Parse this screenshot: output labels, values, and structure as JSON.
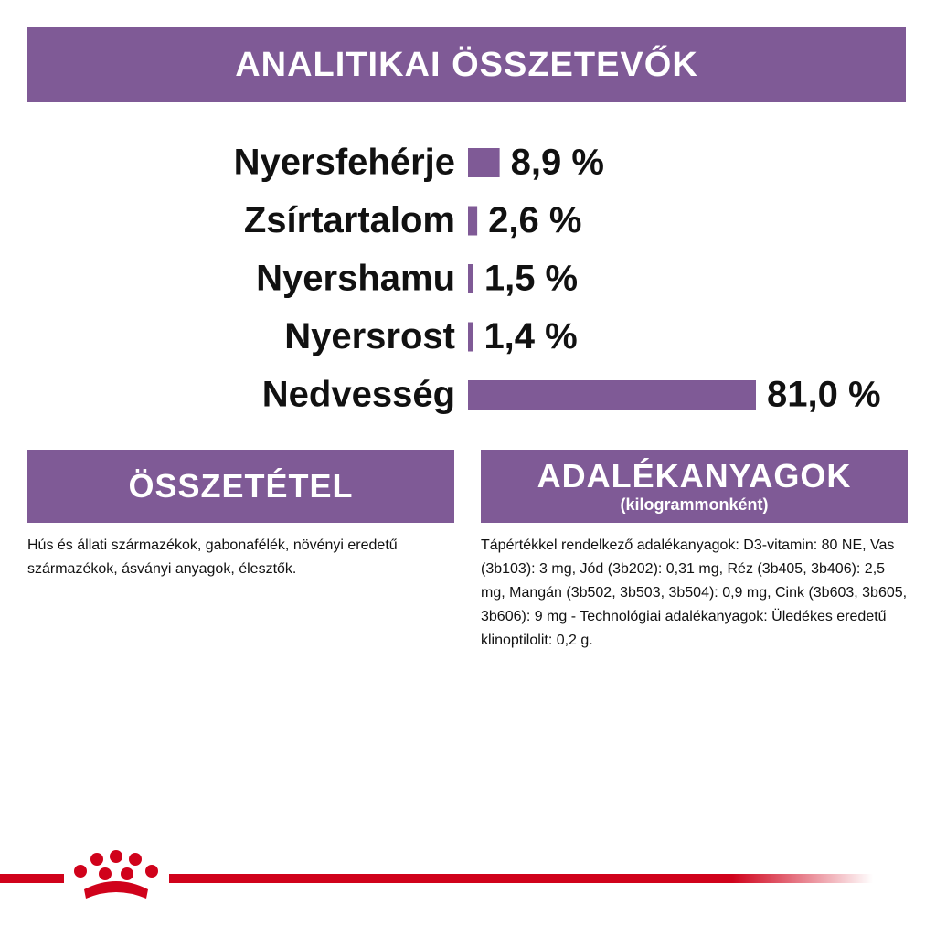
{
  "chart_data": {
    "type": "bar",
    "orientation": "horizontal",
    "title": "ANALITIKAI ÖSSZETEVŐK",
    "categories": [
      "Nyersfehérje",
      "Zsírtartalom",
      "Nyershamu",
      "Nyersrost",
      "Nedvesség"
    ],
    "values": [
      8.9,
      2.6,
      1.5,
      1.4,
      81.0
    ],
    "value_labels": [
      "8,9 %",
      "2,6 %",
      "1,5 %",
      "1,4 %",
      "81,0 %"
    ],
    "color": "#7f5a96"
  },
  "composition": {
    "title": "ÖSSZETÉTEL",
    "text": "Hús és állati származékok, gabonafélék, növényi eredetű származékok, ásványi anyagok, élesztők."
  },
  "additives": {
    "title": "ADALÉKANYAGOK",
    "subtitle": "(kilogrammonként)",
    "text": "Tápértékkel rendelkező adalékanyagok: D3-vitamin: 80 NE, Vas (3b103): 3 mg, Jód (3b202): 0,31 mg, Réz (3b405, 3b406): 2,5 mg, Mangán (3b502, 3b503, 3b504): 0,9 mg, Cink (3b603, 3b605, 3b606): 9 mg - Technológiai adalékanyagok: Üledékes eredetű klinoptilolit: 0,2 g."
  }
}
